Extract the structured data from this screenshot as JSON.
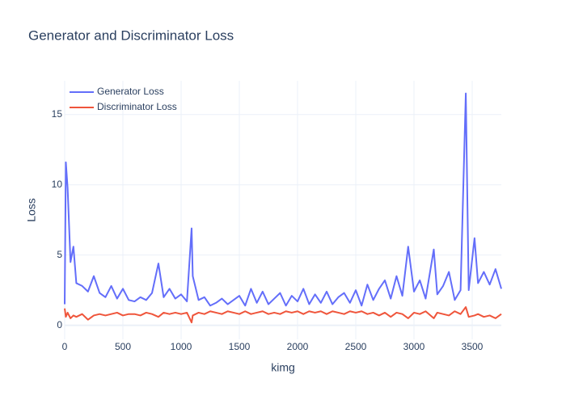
{
  "chart_data": {
    "type": "line",
    "title": "Generator and Discriminator Loss",
    "x_label": "kimg",
    "y_label": "Loss",
    "x": [
      0,
      10,
      25,
      50,
      75,
      100,
      150,
      200,
      250,
      300,
      350,
      400,
      450,
      500,
      550,
      600,
      650,
      700,
      750,
      805,
      850,
      900,
      950,
      1000,
      1050,
      1090,
      1100,
      1150,
      1200,
      1250,
      1300,
      1350,
      1400,
      1450,
      1500,
      1550,
      1600,
      1650,
      1700,
      1750,
      1800,
      1850,
      1900,
      1950,
      2000,
      2050,
      2100,
      2150,
      2200,
      2250,
      2300,
      2350,
      2400,
      2450,
      2500,
      2550,
      2600,
      2650,
      2700,
      2750,
      2800,
      2850,
      2900,
      2950,
      3000,
      3050,
      3100,
      3170,
      3200,
      3250,
      3300,
      3350,
      3400,
      3445,
      3470,
      3520,
      3550,
      3600,
      3650,
      3700,
      3750
    ],
    "series": [
      {
        "name": "Generator Loss",
        "color": "#636efa",
        "values": [
          1.5,
          11.6,
          9.8,
          4.5,
          5.6,
          3.0,
          2.8,
          2.4,
          3.5,
          2.3,
          2.0,
          2.8,
          1.9,
          2.6,
          1.8,
          1.7,
          2.0,
          1.8,
          2.3,
          4.4,
          2.0,
          2.6,
          1.9,
          2.2,
          1.7,
          6.9,
          3.5,
          1.8,
          2.0,
          1.4,
          1.6,
          1.9,
          1.5,
          1.8,
          2.1,
          1.4,
          2.6,
          1.6,
          2.4,
          1.5,
          1.9,
          2.3,
          1.4,
          2.1,
          1.7,
          2.6,
          1.5,
          2.2,
          1.6,
          2.4,
          1.5,
          2.0,
          2.3,
          1.6,
          2.5,
          1.4,
          2.9,
          1.8,
          2.6,
          3.2,
          1.9,
          3.5,
          2.1,
          5.6,
          2.4,
          3.2,
          1.9,
          5.4,
          2.2,
          2.8,
          3.8,
          1.8,
          2.5,
          16.5,
          2.5,
          6.2,
          3.0,
          3.8,
          2.9,
          4.0,
          2.6
        ]
      },
      {
        "name": "Discriminator Loss",
        "color": "#EF553B",
        "values": [
          1.2,
          0.6,
          0.9,
          0.5,
          0.7,
          0.6,
          0.8,
          0.4,
          0.7,
          0.8,
          0.7,
          0.8,
          0.9,
          0.7,
          0.8,
          0.8,
          0.7,
          0.9,
          0.8,
          0.6,
          0.9,
          0.8,
          0.9,
          0.8,
          0.9,
          0.2,
          0.7,
          0.9,
          0.8,
          1.0,
          0.9,
          0.8,
          1.0,
          0.9,
          0.8,
          1.0,
          0.8,
          0.9,
          1.0,
          0.8,
          0.9,
          0.8,
          1.0,
          0.9,
          1.0,
          0.8,
          1.0,
          0.9,
          1.0,
          0.8,
          1.0,
          0.9,
          0.8,
          1.0,
          0.9,
          1.0,
          0.8,
          0.9,
          0.7,
          0.9,
          0.6,
          0.9,
          0.8,
          0.5,
          0.9,
          0.8,
          1.0,
          0.5,
          0.9,
          0.8,
          0.7,
          1.0,
          0.8,
          1.3,
          0.6,
          0.7,
          0.8,
          0.6,
          0.7,
          0.5,
          0.8
        ]
      }
    ],
    "xlim": [
      0,
      3750
    ],
    "ylim": [
      -1,
      17.4
    ],
    "xticks": [
      0,
      500,
      1000,
      1500,
      2000,
      2500,
      3000,
      3500
    ],
    "yticks": [
      0,
      5,
      10,
      15
    ],
    "grid": true,
    "legend": "top-left"
  }
}
